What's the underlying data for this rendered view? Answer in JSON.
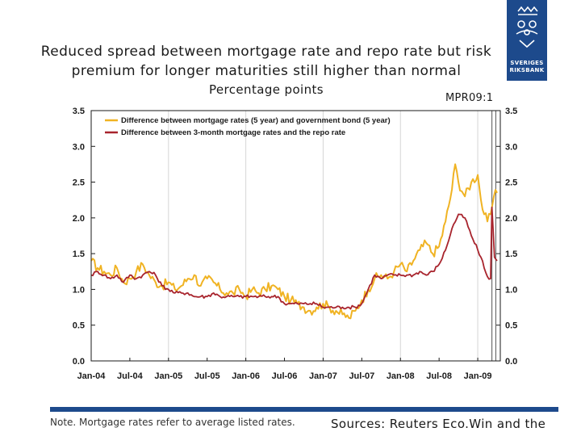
{
  "header": {
    "title_line1": "Reduced spread between mortgage rate and repo rate but risk",
    "title_line2": "premium for longer maturities still higher than normal",
    "subtitle": "Percentage points",
    "report_tag": "MPR09:1"
  },
  "logo": {
    "line1": "SVERIGES",
    "line2": "RIKSBANK",
    "color": "#1d4a8c"
  },
  "footer": {
    "note": "Note. Mortgage rates refer to average listed rates.",
    "sources": "Sources: Reuters Eco.Win and the"
  },
  "chart_data": {
    "type": "line",
    "title": "Reduced spread between mortgage rate and repo rate but risk premium for longer maturities still higher than normal",
    "ylabel": "Percentage points",
    "xlabel": "",
    "ylim": [
      0,
      3.5
    ],
    "yticks": [
      "0.0",
      "0.5",
      "1.0",
      "1.5",
      "2.0",
      "2.5",
      "3.0",
      "3.5"
    ],
    "xlim": [
      "Jan-04",
      "Apr-09"
    ],
    "xticks": [
      "Jan-04",
      "Jul-04",
      "Jan-05",
      "Jul-05",
      "Jan-06",
      "Jul-06",
      "Jan-07",
      "Jul-07",
      "Jan-08",
      "Jul-08",
      "Jan-09"
    ],
    "grid": "vertical lines at year boundaries",
    "legend_position": "top-left",
    "vline_months": [
      62.2,
      62.8
    ],
    "series": [
      {
        "name": "Difference between mortgage rates (5 year) and government bond (5 year)",
        "color": "#f0b323",
        "x_months": [
          0,
          1,
          2,
          3,
          4,
          5,
          6,
          7,
          8,
          9,
          10,
          11,
          12,
          13,
          14,
          15,
          16,
          17,
          18,
          19,
          20,
          21,
          22,
          23,
          24,
          25,
          26,
          27,
          28,
          29,
          30,
          31,
          32,
          33,
          34,
          35,
          36,
          37,
          38,
          39,
          40,
          41,
          42,
          43,
          44,
          45,
          46,
          47,
          48,
          49,
          50,
          51,
          52,
          53,
          54,
          55,
          56,
          56.5,
          57,
          58,
          59,
          60,
          60.5,
          61,
          61.5,
          62,
          62.5,
          63
        ],
        "values": [
          1.4,
          1.3,
          1.25,
          1.2,
          1.3,
          1.1,
          1.15,
          1.25,
          1.35,
          1.2,
          1.1,
          1.05,
          1.1,
          1.0,
          1.05,
          1.15,
          1.2,
          1.05,
          1.15,
          1.1,
          1.0,
          0.95,
          0.95,
          1.0,
          0.9,
          1.0,
          0.95,
          1.0,
          1.05,
          1.0,
          0.9,
          0.85,
          0.8,
          0.75,
          0.7,
          0.75,
          0.8,
          0.75,
          0.7,
          0.65,
          0.6,
          0.7,
          0.85,
          1.0,
          1.15,
          1.2,
          1.15,
          1.25,
          1.35,
          1.25,
          1.4,
          1.55,
          1.65,
          1.5,
          1.6,
          1.95,
          2.4,
          2.75,
          2.5,
          2.3,
          2.5,
          2.6,
          2.25,
          2.05,
          1.95,
          2.05,
          2.3,
          2.35
        ]
      },
      {
        "name": "Difference between 3-month mortgage rates and the repo rate",
        "color": "#a8242d",
        "x_months": [
          0,
          1,
          2,
          3,
          4,
          5,
          6,
          7,
          8,
          9,
          10,
          11,
          12,
          13,
          14,
          15,
          16,
          17,
          18,
          19,
          20,
          21,
          22,
          23,
          24,
          25,
          26,
          27,
          28,
          29,
          30,
          31,
          32,
          33,
          34,
          35,
          36,
          37,
          38,
          39,
          40,
          41,
          42,
          43,
          44,
          45,
          46,
          47,
          48,
          49,
          50,
          51,
          52,
          53,
          54,
          55,
          56,
          57,
          58,
          59,
          60,
          60.5,
          61,
          61.5,
          62,
          62.2,
          62.6,
          63
        ],
        "values": [
          1.2,
          1.25,
          1.2,
          1.15,
          1.2,
          1.1,
          1.2,
          1.15,
          1.2,
          1.25,
          1.2,
          1.05,
          1.0,
          0.95,
          0.95,
          0.95,
          0.9,
          0.9,
          0.9,
          0.95,
          0.9,
          0.9,
          0.9,
          0.9,
          0.9,
          0.9,
          0.9,
          0.9,
          0.9,
          0.9,
          0.8,
          0.8,
          0.8,
          0.8,
          0.8,
          0.8,
          0.75,
          0.75,
          0.75,
          0.75,
          0.75,
          0.75,
          0.8,
          1.0,
          1.2,
          1.15,
          1.2,
          1.2,
          1.2,
          1.2,
          1.2,
          1.25,
          1.2,
          1.25,
          1.35,
          1.55,
          1.85,
          2.05,
          2.0,
          1.75,
          1.55,
          1.45,
          1.3,
          1.18,
          1.15,
          2.15,
          1.45,
          1.4
        ]
      }
    ]
  }
}
